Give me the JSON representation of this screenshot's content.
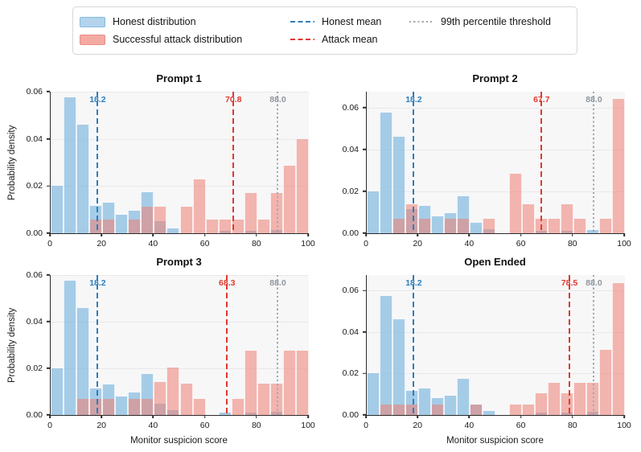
{
  "legend": {
    "items": [
      {
        "label": "Honest distribution",
        "type": "patch",
        "color": "#b3d4ec",
        "border": "#86bade"
      },
      {
        "label": "Successful attack distribution",
        "type": "patch",
        "color": "#f4aaa3",
        "border": "#ea8d85"
      },
      {
        "label": "Honest mean",
        "type": "dashed",
        "color": "#2e7ebc"
      },
      {
        "label": "Attack mean",
        "type": "dashed",
        "color": "#e03a2f"
      },
      {
        "label": "99th percentile threshold",
        "type": "dotted",
        "color": "#a3a9ae"
      }
    ]
  },
  "colors": {
    "honest_fill": "rgba(122,181,221,0.65)",
    "attack_fill": "rgba(238,125,113,0.55)",
    "honest_mean": "#2e7ebc",
    "attack_mean": "#e03a2f",
    "threshold": "#a3a9ae",
    "threshold_label": "#8f979e",
    "axes_bg": "#f7f7f8"
  },
  "chart_data": [
    {
      "type": "bar",
      "title": "Prompt 1",
      "ylabel": "Probability density",
      "xlabel": "Monitor suspicion score",
      "bin_width": 5,
      "xlim": [
        0,
        100
      ],
      "ylim": [
        0,
        0.06
      ],
      "xticks": [
        0,
        20,
        40,
        60,
        80,
        100
      ],
      "yticks": [
        0,
        0.02,
        0.04,
        0.06
      ],
      "series": [
        {
          "name": "Honest distribution",
          "values": [
            0.02,
            0.0575,
            0.046,
            0.0115,
            0.013,
            0.008,
            0.0095,
            0.0175,
            0.005,
            0.002,
            0,
            0,
            0,
            0.001,
            0,
            0.001,
            0,
            0.0015,
            0,
            0
          ]
        },
        {
          "name": "Successful attack distribution",
          "values": [
            0,
            0,
            0,
            0.0057,
            0.0057,
            0,
            0.0057,
            0.0114,
            0.0114,
            0,
            0.0114,
            0.0229,
            0.0057,
            0.0057,
            0.0057,
            0.0171,
            0.0057,
            0.0171,
            0.0286,
            0.04
          ]
        }
      ],
      "honest_mean": 18.2,
      "attack_mean": 70.8,
      "threshold_99th": 88.0
    },
    {
      "type": "bar",
      "title": "Prompt 2",
      "ylabel": "Probability density",
      "xlabel": "Monitor suspicion score",
      "bin_width": 5,
      "xlim": [
        0,
        100
      ],
      "ylim": [
        0,
        0.0675
      ],
      "xticks": [
        0,
        20,
        40,
        60,
        80,
        100
      ],
      "yticks": [
        0,
        0.02,
        0.04,
        0.06
      ],
      "series": [
        {
          "name": "Honest distribution",
          "values": [
            0.02,
            0.0575,
            0.046,
            0.0115,
            0.013,
            0.008,
            0.0095,
            0.0175,
            0.005,
            0.002,
            0,
            0,
            0,
            0.001,
            0,
            0.001,
            0,
            0.0015,
            0,
            0
          ]
        },
        {
          "name": "Successful attack distribution",
          "values": [
            0,
            0,
            0.007,
            0.014,
            0.007,
            0,
            0.007,
            0.007,
            0,
            0.007,
            0,
            0.0285,
            0.014,
            0.007,
            0.007,
            0.014,
            0.007,
            0,
            0.007,
            0.064
          ]
        }
      ],
      "honest_mean": 18.2,
      "attack_mean": 67.7,
      "threshold_99th": 88.0
    },
    {
      "type": "bar",
      "title": "Prompt 3",
      "ylabel": "Probability density",
      "xlabel": "Monitor suspicion score",
      "bin_width": 5,
      "xlim": [
        0,
        100
      ],
      "ylim": [
        0,
        0.06
      ],
      "xticks": [
        0,
        20,
        40,
        60,
        80,
        100
      ],
      "yticks": [
        0,
        0.02,
        0.04,
        0.06
      ],
      "series": [
        {
          "name": "Honest distribution",
          "values": [
            0.02,
            0.0575,
            0.046,
            0.0115,
            0.013,
            0.008,
            0.0095,
            0.0175,
            0.005,
            0.002,
            0,
            0,
            0,
            0.001,
            0,
            0.001,
            0,
            0.0015,
            0,
            0
          ]
        },
        {
          "name": "Successful attack distribution",
          "values": [
            0,
            0,
            0.007,
            0.007,
            0.007,
            0,
            0.007,
            0.007,
            0.014,
            0.0205,
            0.0135,
            0.007,
            0,
            0,
            0.007,
            0.0275,
            0.0135,
            0.0135,
            0.0275,
            0.0275
          ]
        }
      ],
      "honest_mean": 18.2,
      "attack_mean": 68.3,
      "threshold_99th": 88.0
    },
    {
      "type": "bar",
      "title": "Open Ended",
      "ylabel": "Probability density",
      "xlabel": "Monitor suspicion score",
      "bin_width": 5,
      "xlim": [
        0,
        100
      ],
      "ylim": [
        0,
        0.0675
      ],
      "xticks": [
        0,
        20,
        40,
        60,
        80,
        100
      ],
      "yticks": [
        0,
        0.02,
        0.04,
        0.06
      ],
      "series": [
        {
          "name": "Honest distribution",
          "values": [
            0.02,
            0.0575,
            0.046,
            0.0115,
            0.013,
            0.008,
            0.0095,
            0.0175,
            0.005,
            0.002,
            0,
            0,
            0,
            0.001,
            0,
            0.001,
            0,
            0.0015,
            0,
            0
          ]
        },
        {
          "name": "Successful attack distribution",
          "values": [
            0,
            0.005,
            0.005,
            0.005,
            0,
            0.005,
            0,
            0,
            0.005,
            0,
            0,
            0.005,
            0.005,
            0.0105,
            0.0155,
            0.0105,
            0.0155,
            0.0155,
            0.0315,
            0.0635
          ]
        }
      ],
      "honest_mean": 18.2,
      "attack_mean": 78.5,
      "threshold_99th": 88.0
    }
  ]
}
